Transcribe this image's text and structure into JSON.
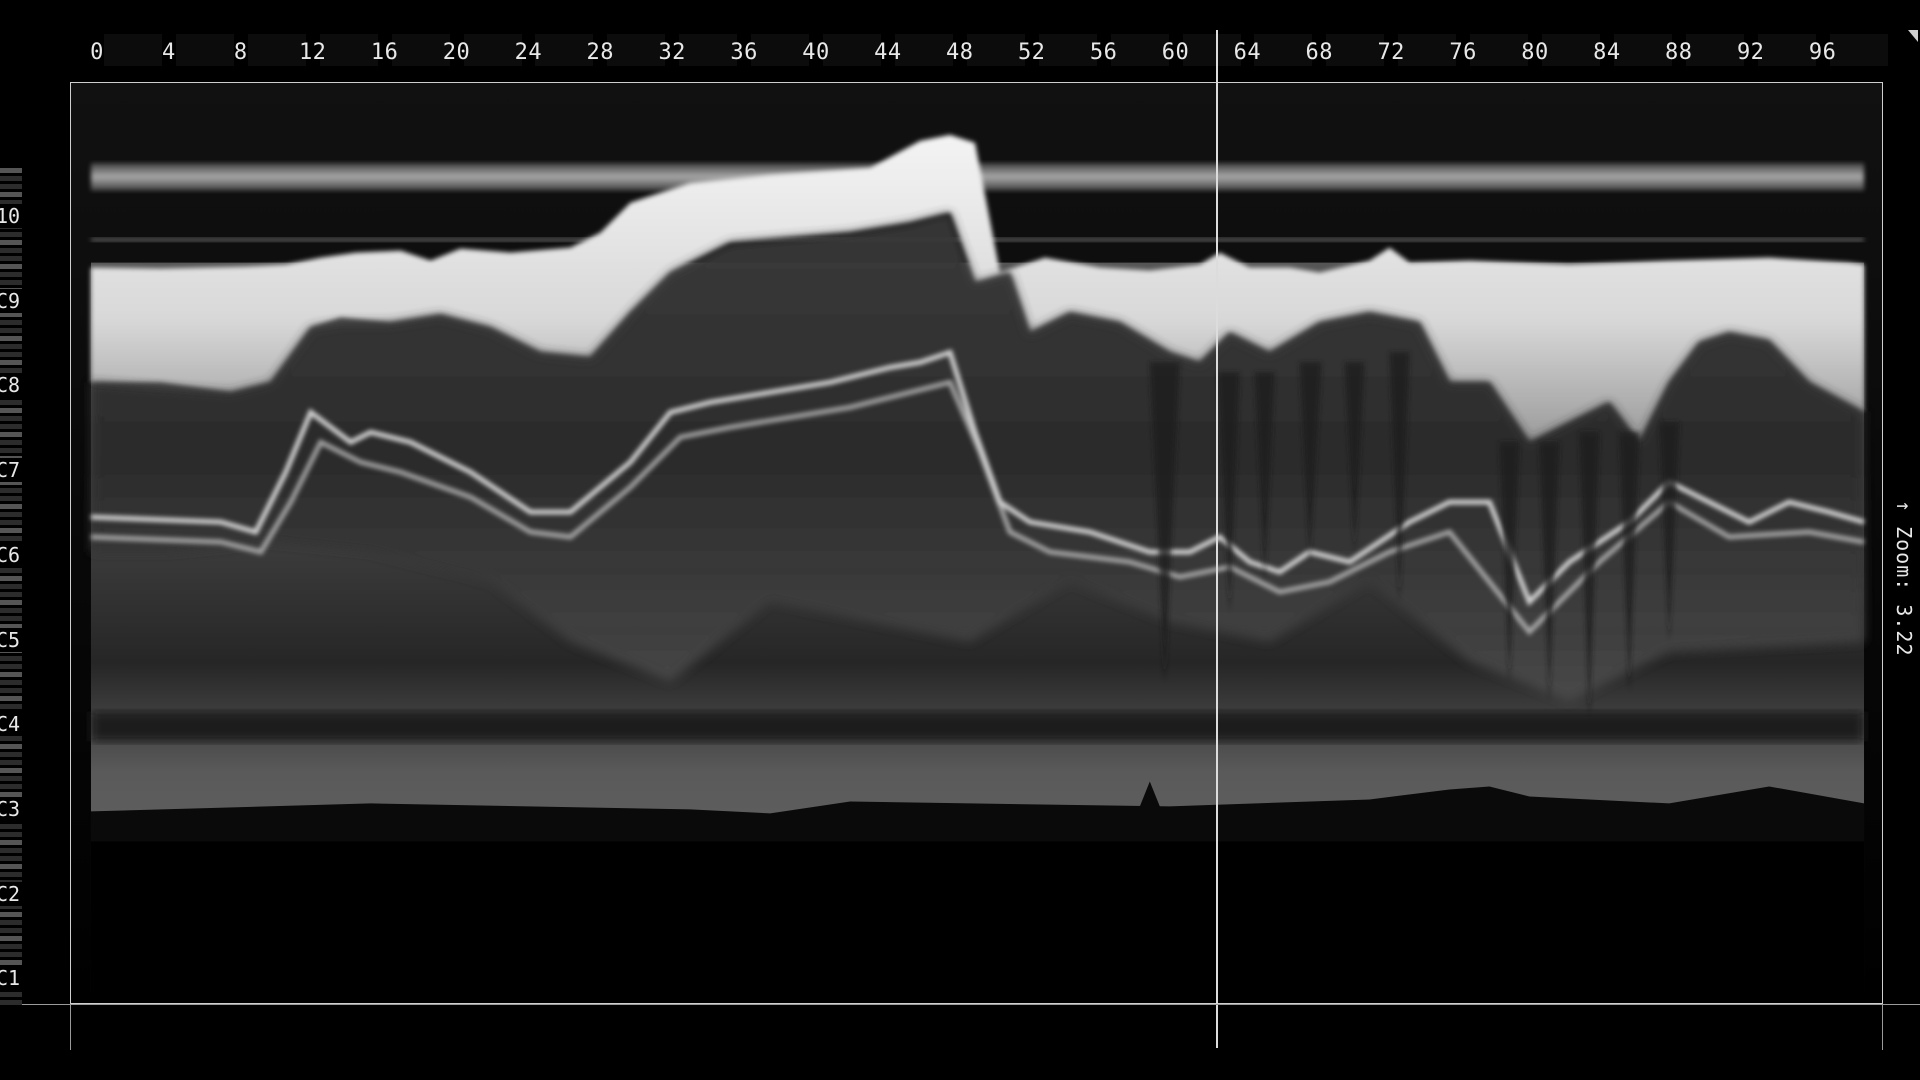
{
  "ruler": {
    "labels": [
      "0",
      "4",
      "8",
      "12",
      "16",
      "20",
      "24",
      "28",
      "32",
      "36",
      "40",
      "44",
      "48",
      "52",
      "56",
      "60",
      "64",
      "68",
      "72",
      "76",
      "80",
      "84",
      "88",
      "92",
      "96"
    ]
  },
  "pitch_axis": {
    "labels": [
      "10",
      "C9",
      "C8",
      "C7",
      "C6",
      "C5",
      "C4",
      "C3",
      "C2",
      "C1"
    ]
  },
  "zoom": {
    "readout": "↑ Zoom: 3.22"
  },
  "colors": {
    "background": "#000000",
    "frame": "#cfcfcf",
    "playhead": "#dcdcdc"
  }
}
